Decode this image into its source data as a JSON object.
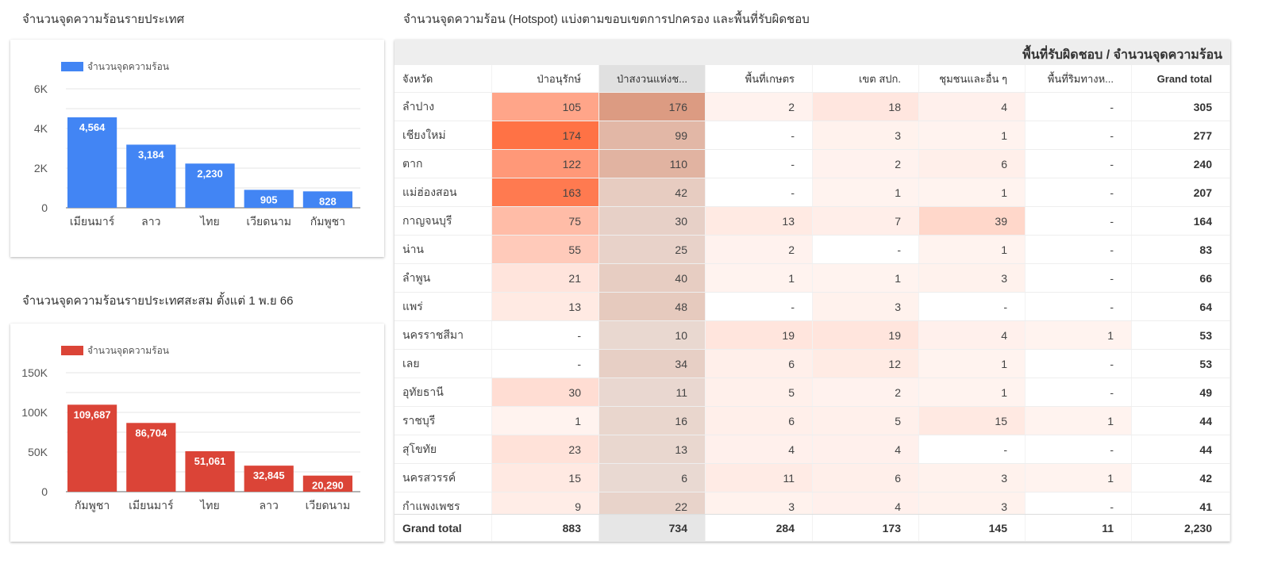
{
  "chart1": {
    "title": "จำนวนจุดความร้อนรายประเทศ",
    "legend": "จำนวนจุดความร้อน",
    "color": "#4285f4",
    "type": "bar",
    "categories": [
      "เมียนมาร์",
      "ลาว",
      "ไทย",
      "เวียดนาม",
      "กัมพูชา"
    ],
    "values": [
      4564,
      3184,
      2230,
      905,
      828
    ],
    "labels": [
      "4,564",
      "3,184",
      "2,230",
      "905",
      "828"
    ],
    "ylim": [
      0,
      6000
    ],
    "ticks": [
      "0",
      "2K",
      "4K",
      "6K"
    ],
    "tick_values": [
      0,
      2000,
      4000,
      6000
    ]
  },
  "chart2": {
    "title": "จำนวนจุดความร้อนรายประเทศสะสม ตั้งแต่ 1 พ.ย 66",
    "legend": "จำนวนจุดความร้อน",
    "color": "#db4437",
    "type": "bar",
    "categories": [
      "กัมพูชา",
      "เมียนมาร์",
      "ไทย",
      "ลาว",
      "เวียดนาม"
    ],
    "values": [
      109687,
      86704,
      51061,
      32845,
      20290
    ],
    "labels": [
      "109,687",
      "86,704",
      "51,061",
      "32,845",
      "20,290"
    ],
    "ylim": [
      0,
      150000
    ],
    "ticks": [
      "0",
      "50K",
      "100K",
      "150K"
    ],
    "tick_values": [
      0,
      50000,
      100000,
      150000
    ]
  },
  "table": {
    "title": "จำนวนจุดความร้อน (Hotspot) แบ่งตามขอบเขตการปกครอง และพื้นที่รับผิดชอบ",
    "band": "พื้นที่รับผิดชอบ / จำนวนจุดความร้อน",
    "heat_color": "#ff7043",
    "columns": [
      "จังหวัด",
      "ป่าอนุรักษ์",
      "ป่าสงวนแห่งช...",
      "พื้นที่เกษตร",
      "เขต สปก.",
      "ชุมชนและอื่น ๆ",
      "พื้นที่ริมทางห...",
      "Grand total"
    ],
    "rows": [
      [
        "ลำปาง",
        "105",
        "176",
        "2",
        "18",
        "4",
        "-",
        "305"
      ],
      [
        "เชียงใหม่",
        "174",
        "99",
        "-",
        "3",
        "1",
        "-",
        "277"
      ],
      [
        "ตาก",
        "122",
        "110",
        "-",
        "2",
        "6",
        "-",
        "240"
      ],
      [
        "แม่ฮ่องสอน",
        "163",
        "42",
        "-",
        "1",
        "1",
        "-",
        "207"
      ],
      [
        "กาญจนบุรี",
        "75",
        "30",
        "13",
        "7",
        "39",
        "-",
        "164"
      ],
      [
        "น่าน",
        "55",
        "25",
        "2",
        "-",
        "1",
        "-",
        "83"
      ],
      [
        "ลำพูน",
        "21",
        "40",
        "1",
        "1",
        "3",
        "-",
        "66"
      ],
      [
        "แพร่",
        "13",
        "48",
        "-",
        "3",
        "-",
        "-",
        "64"
      ],
      [
        "นครราชสีมา",
        "-",
        "10",
        "19",
        "19",
        "4",
        "1",
        "53"
      ],
      [
        "เลย",
        "-",
        "34",
        "6",
        "12",
        "1",
        "-",
        "53"
      ],
      [
        "อุทัยธานี",
        "30",
        "11",
        "5",
        "2",
        "1",
        "-",
        "49"
      ],
      [
        "ราชบุรี",
        "1",
        "16",
        "6",
        "5",
        "15",
        "1",
        "44"
      ],
      [
        "สุโขทัย",
        "23",
        "13",
        "4",
        "4",
        "-",
        "-",
        "44"
      ],
      [
        "นครสวรรค์",
        "15",
        "6",
        "11",
        "6",
        "3",
        "1",
        "42"
      ],
      [
        "กำแพงเพชร",
        "9",
        "22",
        "3",
        "4",
        "3",
        "-",
        "41"
      ]
    ],
    "totals": [
      "Grand total",
      "883",
      "734",
      "284",
      "173",
      "145",
      "11",
      "2,230"
    ]
  }
}
